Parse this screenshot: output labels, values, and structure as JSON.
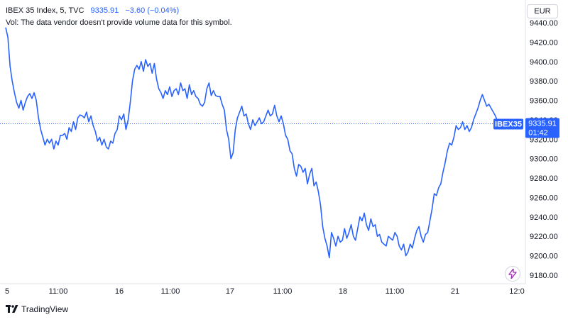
{
  "legend": {
    "symbol": "IBEX 35 Index, 5, TVC",
    "price": "9335.91",
    "change": "−3.60 (−0.04%)",
    "volume_note": "Vol: The data vendor doesn't provide volume data for this symbol."
  },
  "currency": "EUR",
  "price_tag": {
    "symbol": "IBEX35",
    "price": "9335.91",
    "countdown": "01:42",
    "color": "#2962ff"
  },
  "branding": {
    "text": "TradingView",
    "icon": "tradingview-logo-icon"
  },
  "snap_icon": "lightning-icon",
  "colors": {
    "line": "#2962ff",
    "axis_text": "#131722",
    "accent": "#9c27b0"
  },
  "chart_data": {
    "type": "line",
    "title": "",
    "xlabel": "",
    "ylabel": "",
    "ylim": [
      9180,
      9440
    ],
    "y_ticks": [
      "9180.00",
      "9200.00",
      "9220.00",
      "9240.00",
      "9260.00",
      "9280.00",
      "9300.00",
      "9320.00",
      "9340.00",
      "9360.00",
      "9380.00",
      "9400.00",
      "9420.00",
      "9440.00"
    ],
    "x_ticks": [
      "5",
      "11:00",
      "16",
      "11:00",
      "17",
      "11:00",
      "18",
      "11:00",
      "21",
      "12:0"
    ],
    "grid": false,
    "series": [
      {
        "values": [
          9435,
          9425,
          9395,
          9380,
          9368,
          9358,
          9352,
          9360,
          9350,
          9358,
          9364,
          9367,
          9362,
          9368,
          9360,
          9342,
          9330,
          9322,
          9314,
          9320,
          9316,
          9320,
          9310,
          9318,
          9314,
          9324,
          9324,
          9326,
          9320,
          9332,
          9328,
          9338,
          9330,
          9342,
          9345,
          9344,
          9342,
          9348,
          9338,
          9344,
          9334,
          9328,
          9318,
          9322,
          9314,
          9320,
          9312,
          9310,
          9318,
          9316,
          9326,
          9330,
          9344,
          9340,
          9346,
          9330,
          9340,
          9358,
          9380,
          9392,
          9396,
          9392,
          9400,
          9390,
          9402,
          9395,
          9398,
          9388,
          9398,
          9382,
          9372,
          9368,
          9362,
          9370,
          9366,
          9374,
          9364,
          9370,
          9372,
          9366,
          9378,
          9370,
          9372,
          9362,
          9376,
          9366,
          9370,
          9364,
          9362,
          9356,
          9354,
          9358,
          9372,
          9378,
          9365,
          9370,
          9365,
          9364,
          9364,
          9356,
          9350,
          9330,
          9320,
          9300,
          9306,
          9330,
          9342,
          9348,
          9354,
          9344,
          9346,
          9336,
          9330,
          9340,
          9334,
          9338,
          9342,
          9336,
          9338,
          9344,
          9350,
          9344,
          9346,
          9355,
          9344,
          9338,
          9344,
          9336,
          9324,
          9320,
          9308,
          9305,
          9290,
          9282,
          9294,
          9292,
          9286,
          9290,
          9274,
          9284,
          9290,
          9272,
          9276,
          9266,
          9252,
          9230,
          9218,
          9210,
          9198,
          9224,
          9218,
          9210,
          9220,
          9214,
          9216,
          9228,
          9218,
          9224,
          9232,
          9220,
          9216,
          9228,
          9240,
          9236,
          9244,
          9232,
          9226,
          9238,
          9230,
          9232,
          9220,
          9222,
          9214,
          9212,
          9210,
          9220,
          9218,
          9216,
          9224,
          9220,
          9210,
          9206,
          9212,
          9200,
          9204,
          9212,
          9208,
          9218,
          9226,
          9230,
          9220,
          9214,
          9222,
          9224,
          9236,
          9248,
          9264,
          9262,
          9270,
          9274,
          9286,
          9296,
          9308,
          9316,
          9314,
          9322,
          9334,
          9330,
          9332,
          9338,
          9330,
          9334,
          9328,
          9332,
          9340,
          9346,
          9352,
          9360,
          9366,
          9360,
          9354,
          9356,
          9352,
          9348,
          9344,
          9338,
          9336
        ]
      }
    ]
  }
}
